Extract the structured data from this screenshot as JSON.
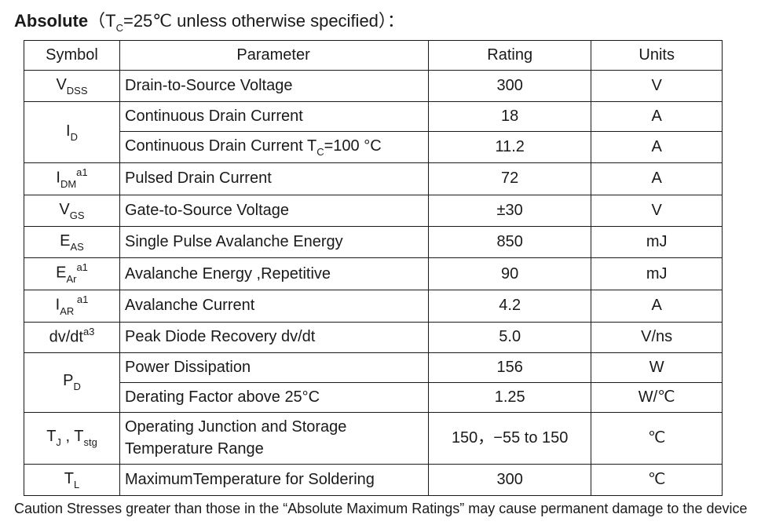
{
  "title": {
    "strong": "Absolute",
    "cond_open": "（T",
    "cond_sub": "C",
    "cond_rest": "=25℃  unless otherwise specified）："
  },
  "headers": {
    "symbol": "Symbol",
    "parameter": "Parameter",
    "rating": "Rating",
    "units": "Units"
  },
  "rows": {
    "r1": {
      "s_main": "V",
      "s_sub": "DSS",
      "p": "Drain-to-Source Voltage",
      "r": "300",
      "u": "V"
    },
    "r2": {
      "s_main": "I",
      "s_sub": "D",
      "p": "Continuous Drain Current",
      "r": "18",
      "u": "A"
    },
    "r3": {
      "p_pre": "Continuous Drain Current T",
      "p_sub": "C",
      "p_post": "=100 °C",
      "r": "11.2",
      "u": "A"
    },
    "r4": {
      "s_main": "I",
      "s_sub": "DM",
      "s_sup": "a1",
      "p": "Pulsed Drain Current",
      "r": "72",
      "u": "A"
    },
    "r5": {
      "s_main": "V",
      "s_sub": "GS",
      "p": "Gate-to-Source Voltage",
      "r": "±30",
      "u": "V"
    },
    "r6": {
      "s_main": "E",
      "s_sub": "AS",
      "p": "Single Pulse Avalanche Energy",
      "r": "850",
      "u": "mJ"
    },
    "r7": {
      "s_main": "E",
      "s_sub": "Ar",
      "s_sup": "a1",
      "p": "Avalanche Energy ,Repetitive",
      "r": "90",
      "u": "mJ"
    },
    "r8": {
      "s_main": "I",
      "s_sub": "AR ",
      "s_sup": "a1",
      "p": "Avalanche Current",
      "r": "4.2",
      "u": "A"
    },
    "r9": {
      "s_main": "dv/dt",
      "s_sup": "a3",
      "p": "Peak Diode Recovery dv/dt",
      "r": "5.0",
      "u": "V/ns"
    },
    "r10": {
      "s_main": "P",
      "s_sub": "D",
      "p": "Power Dissipation",
      "r": "156",
      "u": "W"
    },
    "r11": {
      "p": "Derating Factor above 25°C",
      "r": "1.25",
      "u": "W/℃"
    },
    "r12": {
      "s1_main": "T",
      "s1_sub": "J",
      "s_sep": " , ",
      "s2_main": "T",
      "s2_sub": "stg",
      "p": "Operating Junction and Storage Temperature Range",
      "r": "150，−55 to 150",
      "u": "℃"
    },
    "r13": {
      "s_main": "T",
      "s_sub": "L",
      "p": "MaximumTemperature for Soldering",
      "r": "300",
      "u": "℃"
    }
  },
  "footnote": "Caution Stresses greater than those in the “Absolute Maximum Ratings” may cause permanent damage to the device"
}
